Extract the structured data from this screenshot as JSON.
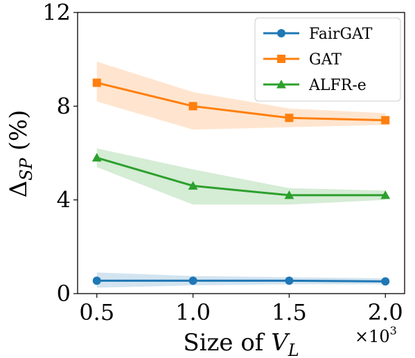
{
  "chart_data": {
    "type": "line",
    "x": [
      0.5,
      1.0,
      1.5,
      2.0
    ],
    "xtick_labels": [
      "0.5",
      "1.0",
      "1.5",
      "2.0"
    ],
    "x_multiplier": "×10",
    "x_multiplier_exp": "3",
    "xlim": [
      0.4,
      2.1
    ],
    "ylim": [
      0,
      12
    ],
    "yticks": [
      0,
      4,
      8,
      12
    ],
    "ytick_labels": [
      "0",
      "4",
      "8",
      "12"
    ],
    "xlabel_main": "Size of ",
    "xlabel_symbol": "V",
    "xlabel_sub": "L",
    "ylabel_main": "Δ",
    "ylabel_sub": "SP",
    "ylabel_tail": " (%)",
    "legend_position": "top-right",
    "series": [
      {
        "name": "FairGAT",
        "color": "#1f77b4",
        "marker": "circle",
        "values": [
          0.55,
          0.55,
          0.55,
          0.52
        ],
        "lower": [
          0.25,
          0.35,
          0.4,
          0.4
        ],
        "upper": [
          0.9,
          0.75,
          0.7,
          0.65
        ]
      },
      {
        "name": "GAT",
        "color": "#ff7f0e",
        "marker": "square",
        "values": [
          9.0,
          8.0,
          7.5,
          7.4
        ],
        "lower": [
          8.2,
          7.0,
          7.1,
          7.2
        ],
        "upper": [
          9.9,
          8.6,
          7.9,
          7.7
        ]
      },
      {
        "name": "ALFR-e",
        "color": "#2ca02c",
        "marker": "triangle",
        "values": [
          5.8,
          4.6,
          4.2,
          4.2
        ],
        "lower": [
          5.4,
          3.8,
          3.8,
          4.0
        ],
        "upper": [
          6.2,
          5.3,
          4.5,
          4.4
        ]
      }
    ]
  }
}
